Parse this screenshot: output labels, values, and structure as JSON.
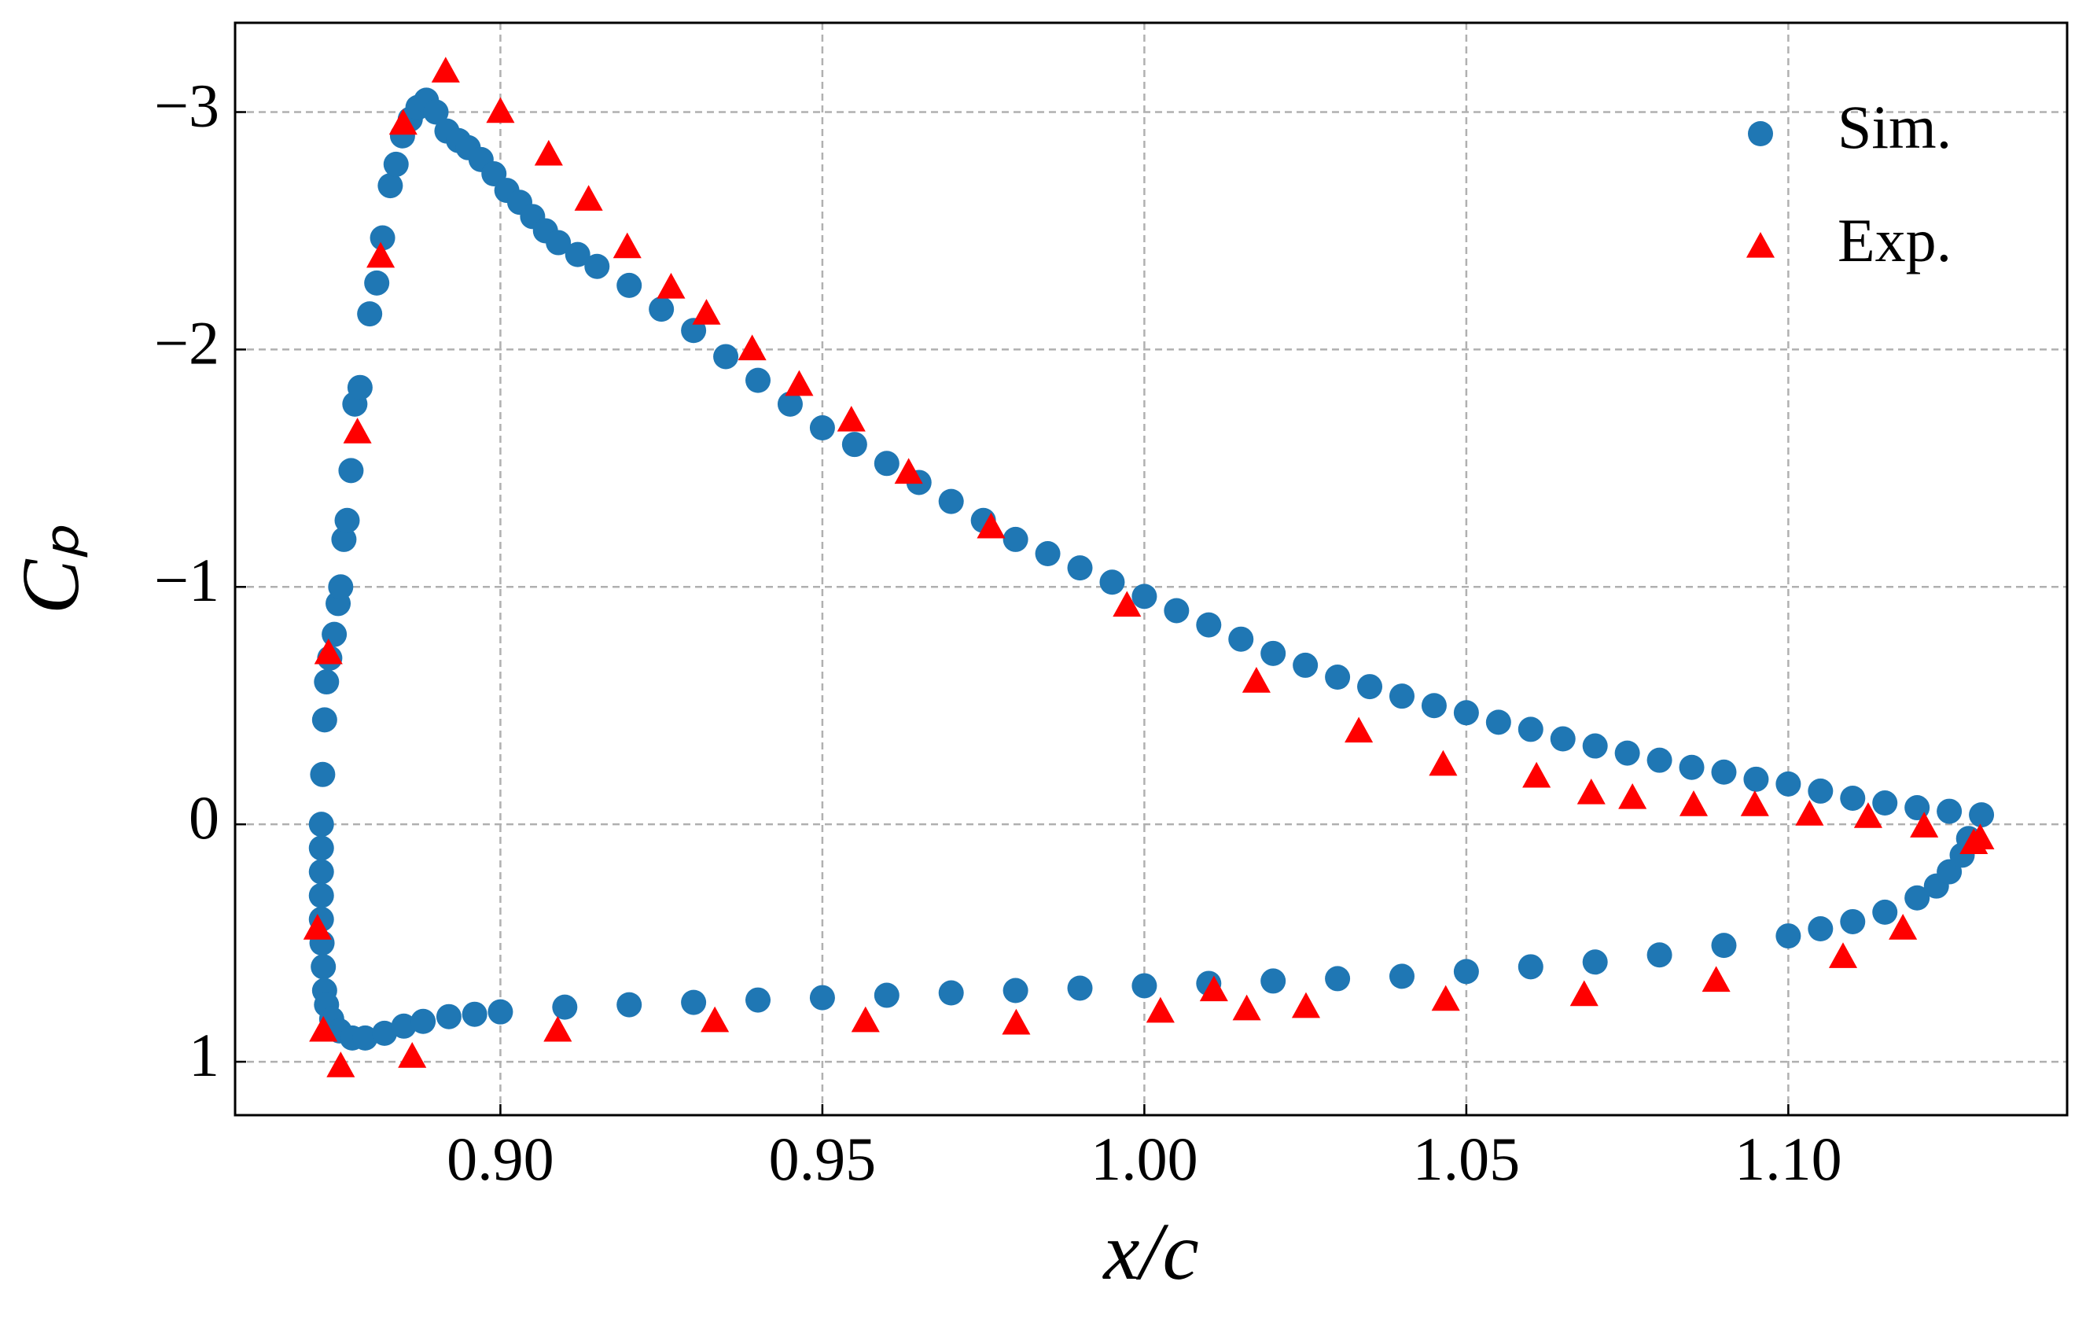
{
  "chart_data": {
    "type": "scatter",
    "xlabel": "x/c",
    "ylabel": "Cₚ",
    "xlim": [
      0.8588,
      1.1433
    ],
    "ylim": [
      -3.376,
      1.225
    ],
    "invert_y": true,
    "grid": true,
    "legend": "upper right",
    "xticks": [
      {
        "value": 0.9,
        "label": "0.90"
      },
      0.95,
      {
        "value": 1.0,
        "label": "1.00"
      },
      1.05,
      {
        "value": 1.1,
        "label": "1.10"
      }
    ],
    "yticks": [
      {
        "value": -3,
        "label": "−3"
      },
      {
        "value": -2,
        "label": "−2"
      },
      {
        "value": -1,
        "label": "−1"
      },
      0,
      1
    ],
    "series": [
      {
        "name": "Sim.",
        "color": "#1f77b4",
        "marker": "circle",
        "x": [
          0.8722,
          0.8724,
          0.8727,
          0.873,
          0.8735,
          0.8742,
          0.8748,
          0.8752,
          0.8757,
          0.8762,
          0.8768,
          0.8774,
          0.8782,
          0.8797,
          0.8808,
          0.8817,
          0.8829,
          0.8838,
          0.8848,
          0.886,
          0.8872,
          0.8885,
          0.89,
          0.8917,
          0.8935,
          0.895,
          0.897,
          0.899,
          0.901,
          0.903,
          0.905,
          0.907,
          0.909,
          0.912,
          0.915,
          0.92,
          0.925,
          0.93,
          0.935,
          0.94,
          0.945,
          0.95,
          0.955,
          0.96,
          0.965,
          0.97,
          0.975,
          0.98,
          0.985,
          0.99,
          0.995,
          1.0,
          1.005,
          1.01,
          1.015,
          1.02,
          1.025,
          1.03,
          1.035,
          1.04,
          1.045,
          1.05,
          1.055,
          1.06,
          1.065,
          1.07,
          1.075,
          1.08,
          1.085,
          1.09,
          1.095,
          1.1,
          1.105,
          1.11,
          1.115,
          1.12,
          1.125,
          1.13,
          0.8722,
          0.8722,
          0.8722,
          0.8722,
          0.8723,
          0.8725,
          0.8727,
          0.873,
          0.8738,
          0.875,
          0.877,
          0.879,
          0.882,
          0.885,
          0.888,
          0.892,
          0.896,
          0.9,
          0.91,
          0.92,
          0.93,
          0.94,
          0.95,
          0.96,
          0.97,
          0.98,
          0.99,
          1.0,
          1.01,
          1.02,
          1.03,
          1.04,
          1.05,
          1.06,
          1.07,
          1.08,
          1.09,
          1.1,
          1.105,
          1.11,
          1.115,
          1.12,
          1.123,
          1.125,
          1.127,
          1.128
        ],
        "values": [
          0,
          -0.21,
          -0.44,
          -0.6,
          -0.7,
          -0.8,
          -0.93,
          -1.0,
          -1.2,
          -1.28,
          -1.49,
          -1.77,
          -1.84,
          -2.15,
          -2.28,
          -2.47,
          -2.69,
          -2.78,
          -2.9,
          -2.97,
          -3.02,
          -3.05,
          -3.0,
          -2.92,
          -2.88,
          -2.85,
          -2.8,
          -2.74,
          -2.67,
          -2.62,
          -2.56,
          -2.5,
          -2.45,
          -2.4,
          -2.35,
          -2.27,
          -2.17,
          -2.08,
          -1.97,
          -1.87,
          -1.77,
          -1.67,
          -1.6,
          -1.52,
          -1.44,
          -1.36,
          -1.28,
          -1.2,
          -1.14,
          -1.08,
          -1.02,
          -0.96,
          -0.9,
          -0.84,
          -0.78,
          -0.72,
          -0.67,
          -0.62,
          -0.58,
          -0.54,
          -0.5,
          -0.47,
          -0.43,
          -0.4,
          -0.36,
          -0.33,
          -0.3,
          -0.27,
          -0.24,
          -0.22,
          -0.19,
          -0.17,
          -0.14,
          -0.11,
          -0.09,
          -0.07,
          -0.055,
          -0.04,
          0.1,
          0.2,
          0.3,
          0.4,
          0.5,
          0.6,
          0.7,
          0.76,
          0.82,
          0.87,
          0.9,
          0.9,
          0.88,
          0.85,
          0.83,
          0.81,
          0.8,
          0.79,
          0.77,
          0.76,
          0.75,
          0.74,
          0.73,
          0.72,
          0.71,
          0.7,
          0.69,
          0.68,
          0.67,
          0.66,
          0.65,
          0.64,
          0.62,
          0.6,
          0.58,
          0.55,
          0.51,
          0.47,
          0.44,
          0.41,
          0.37,
          0.31,
          0.26,
          0.2,
          0.13,
          0.06
        ]
      },
      {
        "name": "Exp.",
        "color": "#ff0000",
        "marker": "triangle",
        "x": [
          0.8915,
          0.9,
          0.9075,
          0.9137,
          0.9197,
          0.9265,
          0.932,
          0.9391,
          0.9464,
          0.9545,
          0.9634,
          0.9762,
          0.9973,
          1.0174,
          1.0333,
          1.0464,
          1.0609,
          1.0694,
          1.0758,
          1.0853,
          1.0948,
          1.1033,
          1.1124,
          1.1211,
          1.1288,
          1.1298,
          1.1178,
          1.1085,
          1.0888,
          1.0683,
          1.0468,
          1.0251,
          1.0159,
          1.0108,
          1.0025,
          0.9801,
          0.9567,
          0.9333,
          0.9089,
          0.8863,
          0.8752,
          0.8725,
          0.8716,
          0.8733,
          0.8814,
          0.8778,
          0.8849
        ],
        "values": [
          -3.17,
          -3.0,
          -2.82,
          -2.63,
          -2.43,
          -2.26,
          -2.15,
          -2.0,
          -1.85,
          -1.7,
          -1.48,
          -1.25,
          -0.92,
          -0.6,
          -0.39,
          -0.25,
          -0.2,
          -0.13,
          -0.11,
          -0.08,
          -0.08,
          -0.04,
          -0.03,
          0.01,
          0.08,
          0.06,
          0.44,
          0.56,
          0.66,
          0.72,
          0.74,
          0.77,
          0.78,
          0.7,
          0.79,
          0.84,
          0.83,
          0.83,
          0.87,
          0.98,
          1.02,
          0.87,
          0.44,
          -0.72,
          -2.39,
          -1.65,
          -2.95
        ]
      }
    ]
  }
}
